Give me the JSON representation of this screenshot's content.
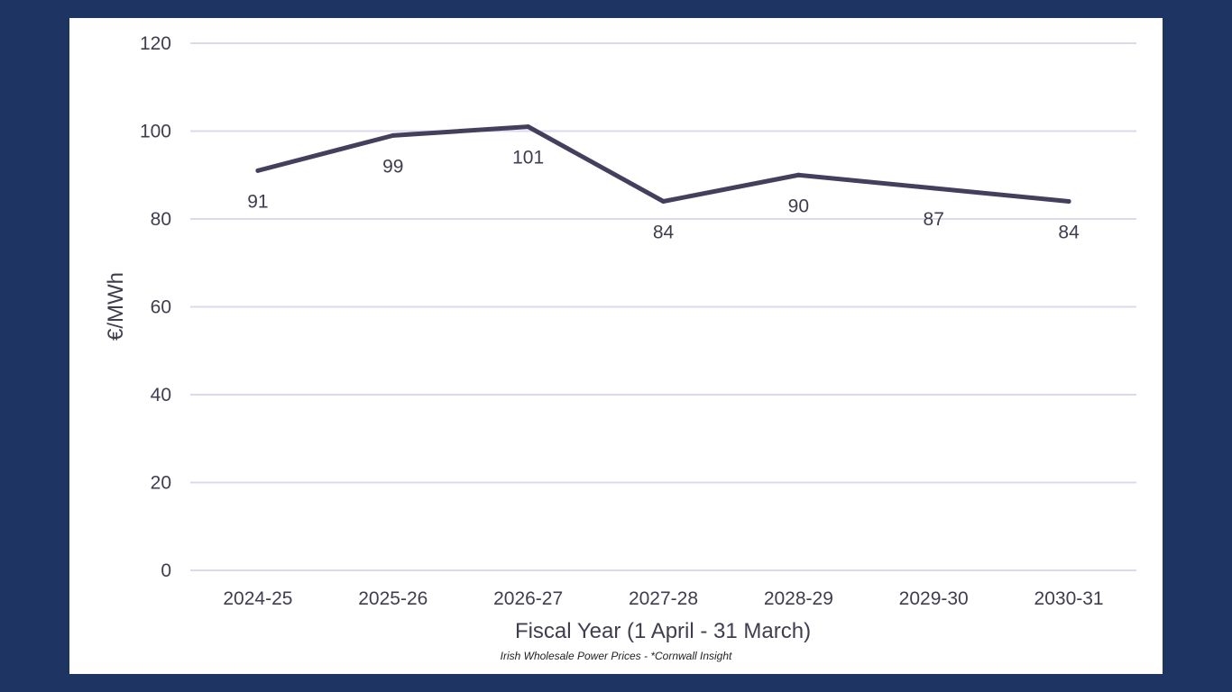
{
  "chart_data": {
    "type": "line",
    "title": "",
    "xlabel": "Fiscal Year (1 April - 31 March)",
    "ylabel": "€/MWh",
    "categories": [
      "2024-25",
      "2025-26",
      "2026-27",
      "2027-28",
      "2028-29",
      "2029-30",
      "2030-31"
    ],
    "series": [
      {
        "name": "Irish Wholesale Power Prices",
        "values": [
          91,
          99,
          101,
          84,
          90,
          87,
          84
        ]
      }
    ],
    "data_labels": [
      "91",
      "99",
      "101",
      "84",
      "90",
      "87",
      "84"
    ],
    "ylim": [
      0,
      120
    ],
    "yticks": [
      0,
      20,
      40,
      60,
      80,
      100,
      120
    ],
    "grid": true,
    "legend": "none",
    "colors": {
      "line": "#433f5c",
      "grid": "#d9dbec",
      "text": "#3e3e4e",
      "background": "#1e3563"
    }
  },
  "caption": "Irish Wholesale Power Prices - *Cornwall Insight"
}
